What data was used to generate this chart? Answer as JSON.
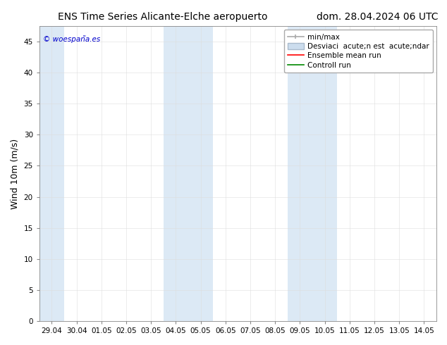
{
  "title_left": "ENS Time Series Alicante-Elche aeropuerto",
  "title_right": "dom. 28.04.2024 06 UTC",
  "ylabel": "Wind 10m (m/s)",
  "watermark": "© woespaña.es",
  "watermark_color": "#0000cc",
  "ylim": [
    0,
    47.5
  ],
  "yticks": [
    0,
    5,
    10,
    15,
    20,
    25,
    30,
    35,
    40,
    45
  ],
  "background_color": "#ffffff",
  "plot_bg_color": "#ffffff",
  "shaded_band_color": "#dce9f5",
  "grid_color": "#dddddd",
  "x_labels": [
    "29.04",
    "30.04",
    "01.05",
    "02.05",
    "03.05",
    "04.05",
    "05.05",
    "06.05",
    "07.05",
    "08.05",
    "09.05",
    "10.05",
    "11.05",
    "12.05",
    "13.05",
    "14.05"
  ],
  "shaded_regions": [
    {
      "start": 0,
      "end": 1
    },
    {
      "start": 5,
      "end": 7
    },
    {
      "start": 10,
      "end": 12
    }
  ],
  "legend_label_minmax": "min/max",
  "legend_label_std": "Desviaci  acute;n est  acute;ndar",
  "legend_label_mean": "Ensemble mean run",
  "legend_label_ctrl": "Controll run",
  "color_minmax": "#aaaaaa",
  "color_std": "#ccddee",
  "color_mean": "#ff0000",
  "color_ctrl": "#008800",
  "title_fontsize": 10,
  "axis_label_fontsize": 9,
  "tick_fontsize": 7.5,
  "legend_fontsize": 7.5
}
